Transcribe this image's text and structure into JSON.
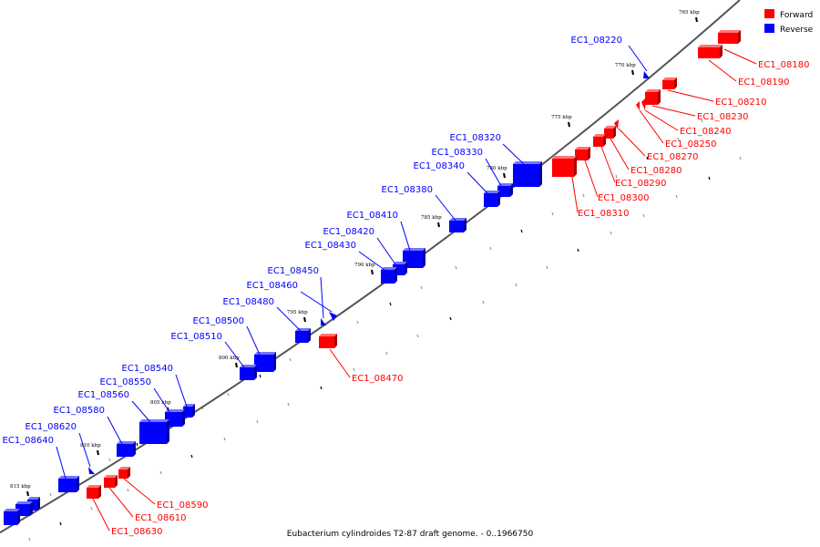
{
  "caption": "Eubacterium cylindroides T2-87 draft genome. - 0..1966750",
  "legend": [
    {
      "label": "Forward",
      "color": "#ff0000"
    },
    {
      "label": "Reverse",
      "color": "#0000ff"
    }
  ],
  "colors": {
    "forward": "#ff0000",
    "reverse": "#0000ff",
    "backbone": "#555555"
  },
  "scale_labels": [
    "765 kbp",
    "770 kbp",
    "775 kbp",
    "780 kbp",
    "785 kbp",
    "790 kbp",
    "795 kbp",
    "800 kbp",
    "805 kbp",
    "810 kbp",
    "815 kbp"
  ],
  "forward_genes": [
    "EC1_08180",
    "EC1_08190",
    "EC1_08210",
    "EC1_08230",
    "EC1_08240",
    "EC1_08250",
    "EC1_08270",
    "EC1_08280",
    "EC1_08290",
    "EC1_08300",
    "EC1_08310",
    "EC1_08470",
    "EC1_08590",
    "EC1_08610",
    "EC1_08630"
  ],
  "reverse_genes": [
    "EC1_08220",
    "EC1_08320",
    "EC1_08330",
    "EC1_08340",
    "EC1_08380",
    "EC1_08410",
    "EC1_08420",
    "EC1_08430",
    "EC1_08450",
    "EC1_08460",
    "EC1_08480",
    "EC1_08500",
    "EC1_08510",
    "EC1_08540",
    "EC1_08550",
    "EC1_08560",
    "EC1_08580",
    "EC1_08620",
    "EC1_08640"
  ]
}
